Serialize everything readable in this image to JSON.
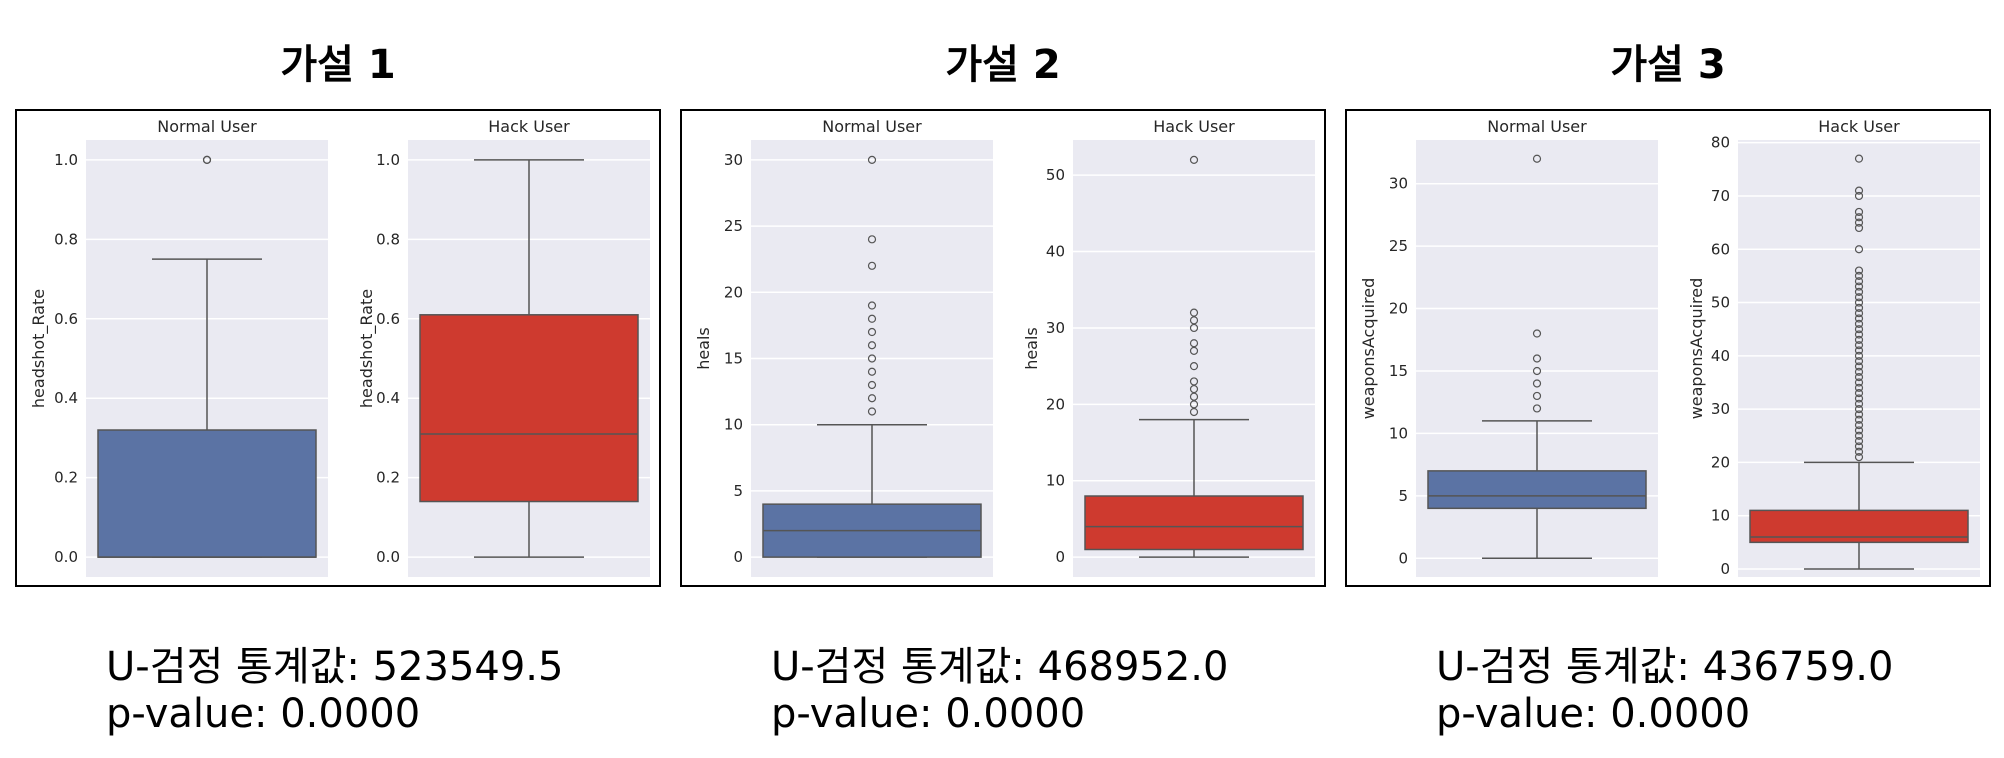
{
  "panels": [
    {
      "title": "가설 1",
      "stat_line": "U-검정 통계값: 523549.5",
      "p_line": "p-value: 0.0000"
    },
    {
      "title": "가설 2",
      "stat_line": "U-검정 통계값: 468952.0",
      "p_line": "p-value: 0.0000"
    },
    {
      "title": "가설 3",
      "stat_line": "U-검정 통계값: 436759.0",
      "p_line": "p-value: 0.0000"
    }
  ],
  "colors": {
    "normal_box": "#5B73A4",
    "hack_box": "#CE3A2F",
    "plot_bg": "#EAEAF2",
    "grid": "#FFFFFF",
    "line": "#555555",
    "frame": "#000000"
  },
  "chart_data": [
    {
      "type": "box",
      "subplots": [
        {
          "title": "Normal User",
          "ylabel": "headshot_Rate",
          "ylim": [
            -0.05,
            1.05
          ],
          "yticks": [
            0.0,
            0.2,
            0.4,
            0.6,
            0.8,
            1.0
          ],
          "ytick_labels": [
            "0.0",
            "0.2",
            "0.4",
            "0.6",
            "0.8",
            "1.0"
          ],
          "whisker_low": 0.0,
          "q1": 0.0,
          "median": 0.0,
          "q3": 0.32,
          "whisker_high": 0.75,
          "outliers": [
            1.0,
            1.0
          ]
        },
        {
          "title": "Hack User",
          "ylabel": "headshot_Rate",
          "ylim": [
            -0.05,
            1.05
          ],
          "yticks": [
            0.0,
            0.2,
            0.4,
            0.6,
            0.8,
            1.0
          ],
          "ytick_labels": [
            "0.0",
            "0.2",
            "0.4",
            "0.6",
            "0.8",
            "1.0"
          ],
          "whisker_low": 0.0,
          "q1": 0.14,
          "median": 0.31,
          "q3": 0.61,
          "whisker_high": 1.0,
          "outliers": []
        }
      ]
    },
    {
      "type": "box",
      "subplots": [
        {
          "title": "Normal User",
          "ylabel": "heals",
          "ylim": [
            -1.5,
            31.5
          ],
          "yticks": [
            0,
            5,
            10,
            15,
            20,
            25,
            30
          ],
          "ytick_labels": [
            "0",
            "5",
            "10",
            "15",
            "20",
            "25",
            "30"
          ],
          "whisker_low": 0,
          "q1": 0,
          "median": 2,
          "q3": 4,
          "whisker_high": 10,
          "outliers": [
            11,
            12,
            13,
            14,
            15,
            16,
            17,
            18,
            19,
            22,
            24,
            30
          ]
        },
        {
          "title": "Hack User",
          "ylabel": "heals",
          "ylim": [
            -2.6,
            54.6
          ],
          "yticks": [
            0,
            10,
            20,
            30,
            40,
            50
          ],
          "ytick_labels": [
            "0",
            "10",
            "20",
            "30",
            "40",
            "50"
          ],
          "whisker_low": 0,
          "q1": 1,
          "median": 4,
          "q3": 8,
          "whisker_high": 18,
          "outliers": [
            19,
            20,
            21,
            22,
            23,
            25,
            27,
            28,
            30,
            31,
            32,
            52
          ]
        }
      ]
    },
    {
      "type": "box",
      "subplots": [
        {
          "title": "Normal User",
          "ylabel": "weaponsAcquired",
          "ylim": [
            -1.5,
            33.5
          ],
          "yticks": [
            0,
            5,
            10,
            15,
            20,
            25,
            30
          ],
          "ytick_labels": [
            "0",
            "5",
            "10",
            "15",
            "20",
            "25",
            "30"
          ],
          "whisker_low": 0,
          "q1": 4,
          "median": 5,
          "q3": 7,
          "whisker_high": 11,
          "outliers": [
            12,
            13,
            14,
            15,
            16,
            18,
            32
          ]
        },
        {
          "title": "Hack User",
          "ylabel": "weaponsAcquired",
          "ylim": [
            -1.5,
            80.5
          ],
          "yticks": [
            0,
            10,
            20,
            30,
            40,
            50,
            60,
            70,
            80
          ],
          "ytick_labels": [
            "0",
            "10",
            "20",
            "30",
            "40",
            "50",
            "60",
            "70",
            "80"
          ],
          "whisker_low": 0,
          "q1": 5,
          "median": 6,
          "q3": 11,
          "whisker_high": 20,
          "outliers": [
            21,
            22,
            23,
            24,
            25,
            26,
            27,
            28,
            29,
            30,
            31,
            32,
            33,
            34,
            35,
            36,
            37,
            38,
            39,
            40,
            41,
            42,
            43,
            44,
            45,
            46,
            47,
            48,
            49,
            50,
            51,
            52,
            53,
            54,
            55,
            56,
            60,
            64,
            65,
            66,
            67,
            70,
            71,
            77
          ]
        }
      ]
    }
  ]
}
